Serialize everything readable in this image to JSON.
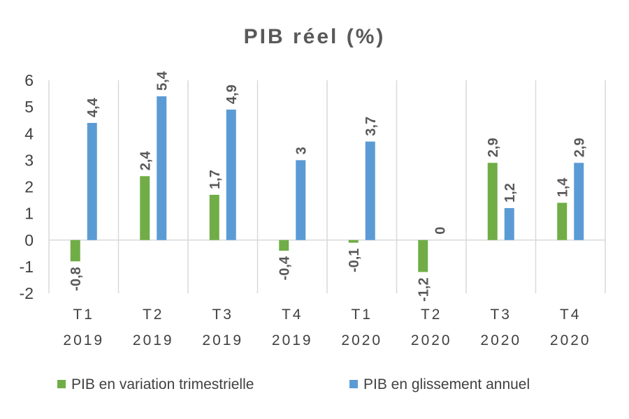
{
  "chart_data": {
    "type": "bar",
    "title": "PIB réel (%)",
    "categories": [
      [
        "T1",
        "2019"
      ],
      [
        "T2",
        "2019"
      ],
      [
        "T3",
        "2019"
      ],
      [
        "T4",
        "2019"
      ],
      [
        "T1",
        "2020"
      ],
      [
        "T2",
        "2020"
      ],
      [
        "T3",
        "2020"
      ],
      [
        "T4",
        "2020"
      ]
    ],
    "series": [
      {
        "name": "PIB en variation trimestrielle",
        "color": "#70ad47",
        "values": [
          -0.8,
          2.4,
          1.7,
          -0.4,
          -0.1,
          -1.2,
          2.9,
          1.4
        ],
        "labels": [
          "-0,8",
          "2,4",
          "1,7",
          "-0,4",
          "-0,1",
          "-1,2",
          "2,9",
          "1,4"
        ]
      },
      {
        "name": "PIB en glissement annuel",
        "color": "#5b9bd5",
        "values": [
          4.4,
          5.4,
          4.9,
          3.0,
          3.7,
          0,
          1.2,
          2.9
        ],
        "labels": [
          "4,4",
          "5,4",
          "4,9",
          "3",
          "3,7",
          "0",
          "1,2",
          "2,9"
        ]
      }
    ],
    "ylim": [
      -2,
      6
    ],
    "yticks": [
      -2,
      -1,
      0,
      1,
      2,
      3,
      4,
      5,
      6
    ],
    "grid": "vertical-category-separators",
    "legend_position": "bottom"
  }
}
